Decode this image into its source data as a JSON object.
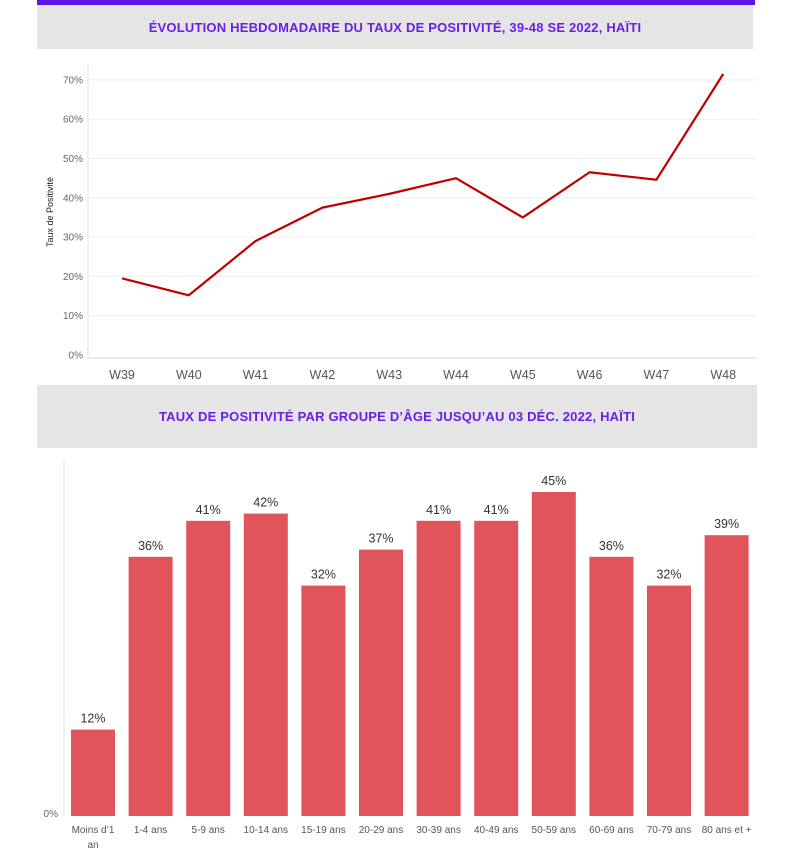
{
  "colors": {
    "accent": "#5b14e6",
    "line": "#c00000",
    "bar": "#e0555c",
    "header_bg": "#e5e5e5"
  },
  "chart_data": [
    {
      "type": "line",
      "title": "ÉVOLUTION HEBDOMADAIRE DU TAUX DE POSITIVITÉ, 39-48 SE 2022, HAÏTI",
      "xlabel": "",
      "ylabel": "Taux de Positivité",
      "x": [
        "W39",
        "W40",
        "W41",
        "W42",
        "W43",
        "W44",
        "W45",
        "W46",
        "W47",
        "W48"
      ],
      "series": [
        {
          "values": [
            19.5,
            15.2,
            29.0,
            37.5,
            41.0,
            45.0,
            35.0,
            46.5,
            44.6,
            71.5
          ]
        }
      ],
      "ylim": [
        0,
        72
      ],
      "yticks": [
        "0%",
        "10%",
        "20%",
        "30%",
        "40%",
        "50%",
        "60%",
        "70%"
      ],
      "grid": true
    },
    {
      "type": "bar",
      "title": "TAUX DE POSITIVITÉ PAR GROUPE D’ÂGE JUSQU’AU 03 DÉC. 2022, HAÏTI",
      "categories": [
        "Moins d’1 an",
        "1-4 ans",
        "5-9 ans",
        "10-14 ans",
        "15-19 ans",
        "20-29 ans",
        "30-39 ans",
        "40-49 ans",
        "50-59 ans",
        "60-69 ans",
        "70-79 ans",
        "80 ans et +"
      ],
      "values": [
        12,
        36,
        41,
        42,
        32,
        37,
        41,
        41,
        45,
        36,
        32,
        39
      ],
      "labels": [
        "12%",
        "36%",
        "41%",
        "42%",
        "32%",
        "37%",
        "41%",
        "41%",
        "45%",
        "36%",
        "32%",
        "39%"
      ],
      "yticks": [
        "0%"
      ],
      "ylim": [
        0,
        48
      ]
    }
  ]
}
